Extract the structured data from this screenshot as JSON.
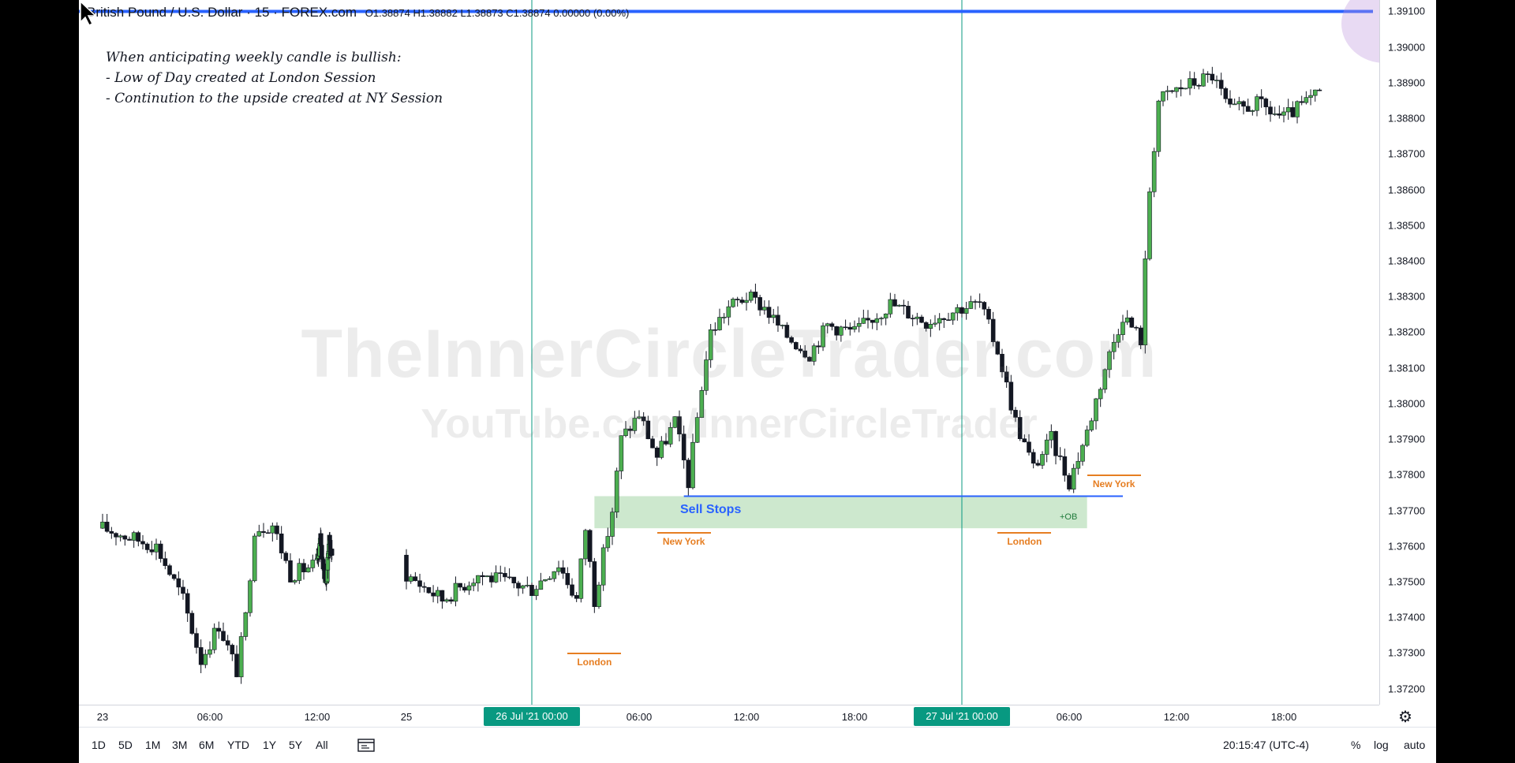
{
  "header": {
    "symbol": "British Pound / U.S. Dollar · 15 · FOREX.com",
    "ohlc": "O1.38874 H1.38882 L1.38873 C1.38874 0.00000 (0.00%)"
  },
  "note": {
    "lines": [
      "When anticipating weekly candle is bullish:",
      "- Low of Day created at London Session",
      "- Continution to the upside created at NY Session"
    ]
  },
  "watermark": {
    "line1": "TheInnerCircleTrader.com",
    "line2": "YouTube.com/InnerCircleTrader"
  },
  "annotations": {
    "sell_stops": "Sell Stops",
    "ob": "+OB",
    "sessions": [
      {
        "label": "London",
        "time": "2021-07-26 03:30",
        "price": 1.373
      },
      {
        "label": "New York",
        "time": "2021-07-26 08:30",
        "price": 1.3764
      },
      {
        "label": "London",
        "time": "2021-07-27 03:30",
        "price": 1.3764
      },
      {
        "label": "New York",
        "time": "2021-07-27 08:30",
        "price": 1.378
      }
    ]
  },
  "x_axis": {
    "ticks": [
      "23",
      "06:00",
      "12:00",
      "25",
      "06:00",
      "12:00",
      "18:00",
      "06:00",
      "12:00",
      "18:00"
    ],
    "highlighted": [
      "26 Jul '21   00:00",
      "27 Jul '21   00:00"
    ]
  },
  "bottom_bar": {
    "ranges": [
      "1D",
      "5D",
      "1M",
      "3M",
      "6M",
      "YTD",
      "1Y",
      "5Y",
      "All"
    ],
    "clock": "20:15:47 (UTC-4)",
    "options": [
      "%",
      "log",
      "auto"
    ]
  },
  "icons": {
    "settings": "gear-icon",
    "calendar": "calendar-icon",
    "cursor": "cursor-icon"
  },
  "colors": {
    "up": "#26a69a",
    "down": "#ef5350",
    "upbody": "#4caf50",
    "session": "#e67e22",
    "level": "#2962ff",
    "zone": "#c8e6c9",
    "divider": "#089981"
  },
  "chart_data": {
    "type": "candlestick",
    "title": "British Pound / U.S. Dollar · 15 · FOREX.com",
    "y_ticks": [
      1.391,
      1.39,
      1.389,
      1.388,
      1.387,
      1.386,
      1.385,
      1.384,
      1.383,
      1.382,
      1.381,
      1.38,
      1.379,
      1.378,
      1.377,
      1.376,
      1.375,
      1.374,
      1.373,
      1.372
    ],
    "ylim": [
      1.37155,
      1.39132
    ],
    "x_range": [
      "2021-07-23 00:00",
      "2021-07-27 20:00"
    ],
    "horizontal_levels": [
      {
        "price": 1.391,
        "color": "#2962ff",
        "label": ""
      },
      {
        "price": 1.3774,
        "color": "#2962ff",
        "from": "2021-07-26 08:30",
        "to": "2021-07-27 09:00",
        "label": "Sell Stops"
      }
    ],
    "zones": [
      {
        "from": "2021-07-26 03:30",
        "to": "2021-07-27 07:00",
        "top": 1.3774,
        "bottom": 1.3765,
        "label": "+OB"
      }
    ],
    "vertical_lines": [
      "2021-07-26 00:00",
      "2021-07-27 00:00"
    ],
    "series": [
      {
        "name": "GBPUSD",
        "note": "Candles summarised as close-price waypoints (time, price).",
        "waypoints": [
          [
            "2021-07-23 00:00",
            1.3765
          ],
          [
            "2021-07-23 03:00",
            1.376
          ],
          [
            "2021-07-23 04:30",
            1.3745
          ],
          [
            "2021-07-23 05:30",
            1.3728
          ],
          [
            "2021-07-23 06:30",
            1.3738
          ],
          [
            "2021-07-23 07:30",
            1.3725
          ],
          [
            "2021-07-23 08:00",
            1.374
          ],
          [
            "2021-07-23 08:30",
            1.3765
          ],
          [
            "2021-07-23 09:30",
            1.3766
          ],
          [
            "2021-07-23 10:30",
            1.3752
          ],
          [
            "2021-07-23 12:00",
            1.3755
          ],
          [
            "2021-07-23 14:00",
            1.3762
          ],
          [
            "2021-07-23 16:00",
            1.3753
          ],
          [
            "2021-07-23 17:30",
            1.375
          ],
          [
            "2021-07-23 19:00",
            1.3762
          ],
          [
            "2021-07-23 21:00",
            1.3756
          ],
          [
            "2021-07-25 17:00",
            1.3752
          ],
          [
            "2021-07-25 19:00",
            1.3745
          ],
          [
            "2021-07-25 21:00",
            1.3752
          ],
          [
            "2021-07-26 00:00",
            1.3748
          ],
          [
            "2021-07-26 01:30",
            1.3755
          ],
          [
            "2021-07-26 02:30",
            1.3745
          ],
          [
            "2021-07-26 03:00",
            1.3765
          ],
          [
            "2021-07-26 03:30",
            1.3745
          ],
          [
            "2021-07-26 04:30",
            1.377
          ],
          [
            "2021-07-26 05:00",
            1.379
          ],
          [
            "2021-07-26 06:00",
            1.3797
          ],
          [
            "2021-07-26 07:00",
            1.3785
          ],
          [
            "2021-07-26 08:00",
            1.3795
          ],
          [
            "2021-07-26 08:45",
            1.3778
          ],
          [
            "2021-07-26 09:30",
            1.3805
          ],
          [
            "2021-07-26 10:00",
            1.382
          ],
          [
            "2021-07-26 11:00",
            1.3827
          ],
          [
            "2021-07-26 12:00",
            1.383
          ],
          [
            "2021-07-26 13:00",
            1.3827
          ],
          [
            "2021-07-26 14:00",
            1.382
          ],
          [
            "2021-07-26 15:30",
            1.3814
          ],
          [
            "2021-07-26 16:30",
            1.3822
          ],
          [
            "2021-07-26 18:00",
            1.382
          ],
          [
            "2021-07-26 20:00",
            1.3828
          ],
          [
            "2021-07-26 22:00",
            1.3823
          ],
          [
            "2021-07-27 00:00",
            1.3827
          ],
          [
            "2021-07-27 01:00",
            1.3828
          ],
          [
            "2021-07-27 02:00",
            1.3815
          ],
          [
            "2021-07-27 03:00",
            1.3795
          ],
          [
            "2021-07-27 04:00",
            1.3782
          ],
          [
            "2021-07-27 05:00",
            1.379
          ],
          [
            "2021-07-27 06:00",
            1.3778
          ],
          [
            "2021-07-27 07:00",
            1.3792
          ],
          [
            "2021-07-27 08:00",
            1.381
          ],
          [
            "2021-07-27 09:00",
            1.3825
          ],
          [
            "2021-07-27 10:00",
            1.3818
          ],
          [
            "2021-07-27 10:30",
            1.386
          ],
          [
            "2021-07-27 11:00",
            1.3885
          ],
          [
            "2021-07-27 12:00",
            1.3888
          ],
          [
            "2021-07-27 13:00",
            1.389
          ],
          [
            "2021-07-27 14:00",
            1.3892
          ],
          [
            "2021-07-27 15:00",
            1.3882
          ],
          [
            "2021-07-27 16:30",
            1.3884
          ],
          [
            "2021-07-27 18:00",
            1.388
          ],
          [
            "2021-07-27 20:00",
            1.3887
          ]
        ]
      }
    ]
  }
}
